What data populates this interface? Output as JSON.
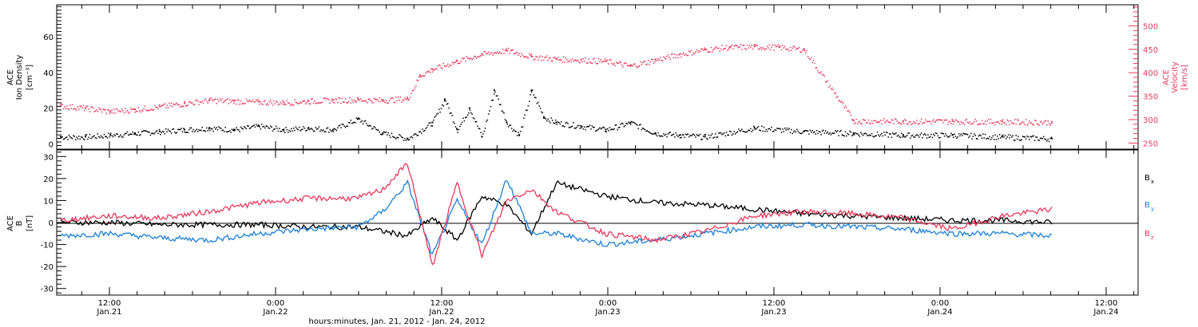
{
  "colors": {
    "black": "#000000",
    "blue": "#1a7fd6",
    "red": "#e8395c",
    "frame": "#000000"
  },
  "chart_data": [
    {
      "type": "scatter",
      "panel": "top",
      "left_ylabel": [
        "ACE",
        "Ion Density",
        "[cm⁻³]"
      ],
      "right_ylabel": [
        "ACE",
        "Velocity",
        "[km/s]"
      ],
      "left_yticks": [
        0,
        20,
        40,
        60
      ],
      "left_ylim": [
        -3,
        78
      ],
      "right_yticks": [
        250,
        300,
        350,
        400,
        450,
        500
      ],
      "right_ylim": [
        237,
        545
      ],
      "grid": false,
      "series": [
        {
          "axis": "left",
          "color": "black",
          "x": [
            0.0,
            0.1,
            0.2,
            0.3,
            0.4,
            0.5,
            0.6,
            0.7,
            0.8,
            0.9,
            1.0,
            1.1,
            1.2,
            1.3,
            1.4,
            1.5,
            1.55,
            1.6,
            1.65,
            1.7,
            1.75,
            1.8,
            1.85,
            1.9,
            1.95,
            2.0,
            2.1,
            2.2,
            2.3,
            2.4,
            2.5,
            2.6,
            2.8,
            3.0,
            3.2,
            3.4,
            3.6,
            3.8,
            4.0
          ],
          "y": [
            4,
            4,
            5,
            6,
            7,
            8,
            9,
            8,
            10,
            8,
            9,
            8,
            14,
            6,
            3,
            12,
            25,
            8,
            20,
            4,
            30,
            12,
            5,
            30,
            15,
            12,
            10,
            8,
            12,
            6,
            5,
            4,
            9,
            7,
            6,
            5,
            5,
            4,
            3
          ]
        },
        {
          "axis": "right",
          "color": "red",
          "x": [
            0.0,
            0.1,
            0.2,
            0.3,
            0.4,
            0.5,
            0.6,
            0.7,
            0.8,
            0.9,
            1.0,
            1.1,
            1.2,
            1.3,
            1.4,
            1.45,
            1.5,
            1.6,
            1.7,
            1.8,
            1.9,
            2.0,
            2.1,
            2.2,
            2.3,
            2.4,
            2.5,
            2.6,
            2.7,
            2.8,
            2.9,
            3.0,
            3.2,
            3.4,
            3.6,
            3.8,
            4.0
          ],
          "y": [
            330,
            325,
            318,
            322,
            328,
            335,
            342,
            340,
            338,
            337,
            340,
            342,
            343,
            342,
            345,
            395,
            408,
            425,
            440,
            448,
            435,
            430,
            428,
            425,
            415,
            428,
            440,
            450,
            455,
            456,
            455,
            450,
            298,
            297,
            297,
            296,
            295
          ]
        }
      ]
    },
    {
      "type": "line",
      "panel": "bottom",
      "ylabel": [
        "ACE",
        "B",
        "[nT]"
      ],
      "yticks": [
        -30,
        -20,
        -10,
        0,
        10,
        20,
        30
      ],
      "ylim": [
        -33,
        33
      ],
      "zero_line": true,
      "grid": false,
      "legend_position": "right",
      "legend": [
        {
          "label": "B",
          "sub": "x",
          "color": "black"
        },
        {
          "label": "B",
          "sub": "y",
          "color": "blue"
        },
        {
          "label": "B",
          "sub": "z",
          "color": "red"
        }
      ],
      "series": [
        {
          "name": "Bx",
          "color": "black",
          "x": [
            0.0,
            0.2,
            0.4,
            0.6,
            0.8,
            1.0,
            1.2,
            1.3,
            1.4,
            1.5,
            1.6,
            1.7,
            1.8,
            1.9,
            2.0,
            2.2,
            2.4,
            2.6,
            2.8,
            3.0,
            3.2,
            3.4,
            3.6,
            3.8,
            4.0
          ],
          "y": [
            0,
            0,
            -1,
            -1,
            -1,
            -2,
            -2,
            -4,
            -6,
            2,
            -8,
            12,
            8,
            -5,
            18,
            12,
            9,
            8,
            6,
            4,
            3,
            2,
            1,
            1,
            0
          ]
        },
        {
          "name": "By",
          "color": "blue",
          "x": [
            0.0,
            0.2,
            0.4,
            0.6,
            0.8,
            1.0,
            1.2,
            1.3,
            1.4,
            1.5,
            1.6,
            1.7,
            1.8,
            1.9,
            2.0,
            2.2,
            2.4,
            2.6,
            2.8,
            3.0,
            3.2,
            3.4,
            3.6,
            3.8,
            4.0
          ],
          "y": [
            -6,
            -5,
            -7,
            -8,
            -5,
            -3,
            -2,
            5,
            18,
            -15,
            10,
            -10,
            20,
            -5,
            -5,
            -10,
            -8,
            -5,
            -2,
            -1,
            -2,
            -3,
            -5,
            -5,
            -6
          ]
        },
        {
          "name": "Bz",
          "color": "red",
          "x": [
            0.0,
            0.2,
            0.4,
            0.6,
            0.8,
            1.0,
            1.2,
            1.3,
            1.4,
            1.5,
            1.6,
            1.7,
            1.8,
            1.9,
            2.0,
            2.2,
            2.4,
            2.6,
            2.8,
            3.0,
            3.2,
            3.4,
            3.6,
            3.8,
            4.0
          ],
          "y": [
            1,
            3,
            2,
            5,
            9,
            11,
            11,
            15,
            27,
            -20,
            18,
            -15,
            10,
            15,
            5,
            -5,
            -8,
            -4,
            3,
            5,
            4,
            2,
            -3,
            3,
            6
          ]
        }
      ]
    }
  ],
  "xaxis": {
    "tick_labels": [
      {
        "time": "12:00",
        "date": "Jan.21"
      },
      {
        "time": "0:00",
        "date": "Jan.22"
      },
      {
        "time": "12:00",
        "date": "Jan.22"
      },
      {
        "time": "0:00",
        "date": "Jan.23"
      },
      {
        "time": "12:00",
        "date": "Jan.23"
      },
      {
        "time": "0:00",
        "date": "Jan.24"
      },
      {
        "time": "12:00",
        "date": "Jan.24"
      }
    ],
    "xlabel": "hours:minutes, Jan. 21, 2012 - Jan. 24, 2012"
  }
}
